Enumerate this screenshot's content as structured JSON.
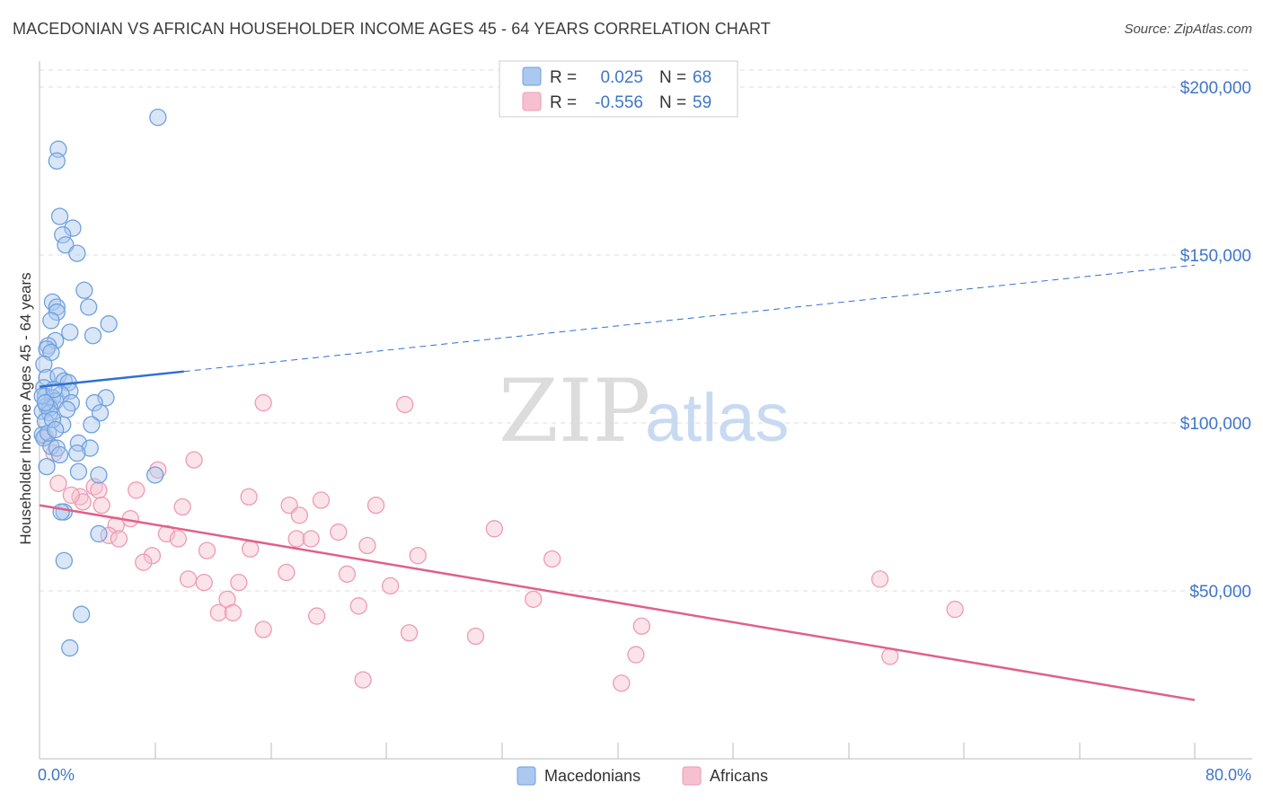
{
  "header": {
    "title": "MACEDONIAN VS AFRICAN HOUSEHOLDER INCOME AGES 45 - 64 YEARS CORRELATION CHART",
    "source": "Source: ZipAtlas.com"
  },
  "watermark": {
    "zip": "ZIP",
    "atlas": "atlas"
  },
  "colors": {
    "blue_fill": "#aac8f0",
    "blue_stroke": "#6fa0dd",
    "blue_line": "#2f6fd0",
    "pink_fill": "#f7c0d0",
    "pink_stroke": "#ee9ab3",
    "pink_line": "#e0608a",
    "axis_label": "#3f76c7",
    "grid": "#dddddd"
  },
  "legend": {
    "rows": [
      {
        "r_label": "R =",
        "r_value": "0.025",
        "n_label": "N =",
        "n_value": "68"
      },
      {
        "r_label": "R =",
        "r_value": "-0.556",
        "n_label": "N =",
        "n_value": "59"
      }
    ]
  },
  "bottom_legend": [
    "Macedonians",
    "Africans"
  ],
  "chart_data": {
    "type": "scatter",
    "title": "MACEDONIAN VS AFRICAN HOUSEHOLDER INCOME AGES 45 - 64 YEARS CORRELATION CHART",
    "xlabel": "",
    "ylabel": "Householder Income Ages 45 - 64 years",
    "xlim": [
      0,
      80
    ],
    "ylim": [
      0,
      205000
    ],
    "x_tick_labels": [
      "0.0%",
      "80.0%"
    ],
    "y_ticks": [
      50000,
      100000,
      150000,
      200000
    ],
    "y_tick_labels": [
      "$50,000",
      "$100,000",
      "$150,000",
      "$200,000"
    ],
    "series": [
      {
        "name": "Macedonians",
        "r": 0.025,
        "n": 68,
        "trend": {
          "x0": 0,
          "y0": 110800,
          "x1": 80,
          "y1": 147000,
          "solid_until": 10
        },
        "points": [
          [
            8.2,
            191000
          ],
          [
            1.3,
            181500
          ],
          [
            1.2,
            178000
          ],
          [
            1.4,
            161500
          ],
          [
            2.3,
            158000
          ],
          [
            1.6,
            156000
          ],
          [
            1.8,
            153000
          ],
          [
            2.6,
            150500
          ],
          [
            3.1,
            139500
          ],
          [
            0.9,
            136000
          ],
          [
            1.2,
            134500
          ],
          [
            1.2,
            133000
          ],
          [
            3.4,
            134500
          ],
          [
            0.8,
            130500
          ],
          [
            4.8,
            129500
          ],
          [
            2.1,
            127000
          ],
          [
            3.7,
            126000
          ],
          [
            1.1,
            124500
          ],
          [
            0.6,
            123000
          ],
          [
            0.5,
            122000
          ],
          [
            0.8,
            121000
          ],
          [
            0.3,
            117500
          ],
          [
            0.5,
            113500
          ],
          [
            1.3,
            114000
          ],
          [
            1.7,
            112500
          ],
          [
            2.0,
            112000
          ],
          [
            0.3,
            110500
          ],
          [
            2.1,
            109500
          ],
          [
            1.5,
            108500
          ],
          [
            0.4,
            108000
          ],
          [
            0.9,
            107500
          ],
          [
            4.6,
            107500
          ],
          [
            1.1,
            106500
          ],
          [
            2.2,
            106000
          ],
          [
            3.8,
            106000
          ],
          [
            0.5,
            105000
          ],
          [
            0.7,
            104500
          ],
          [
            0.2,
            103500
          ],
          [
            0.7,
            103000
          ],
          [
            4.2,
            103000
          ],
          [
            0.4,
            100500
          ],
          [
            1.6,
            99500
          ],
          [
            3.6,
            99500
          ],
          [
            0.2,
            96500
          ],
          [
            0.3,
            95500
          ],
          [
            2.7,
            94000
          ],
          [
            0.8,
            93000
          ],
          [
            1.2,
            92500
          ],
          [
            3.5,
            92500
          ],
          [
            2.6,
            91000
          ],
          [
            1.4,
            90500
          ],
          [
            0.5,
            87000
          ],
          [
            2.7,
            85500
          ],
          [
            4.1,
            84500
          ],
          [
            8.0,
            84500
          ],
          [
            1.7,
            73500
          ],
          [
            1.5,
            73500
          ],
          [
            4.1,
            67000
          ],
          [
            1.7,
            59000
          ],
          [
            2.9,
            43000
          ],
          [
            2.1,
            33000
          ],
          [
            0.2,
            108000
          ],
          [
            1.0,
            110000
          ],
          [
            0.6,
            97000
          ],
          [
            0.9,
            101000
          ],
          [
            1.9,
            104000
          ],
          [
            0.4,
            106000
          ],
          [
            1.1,
            98000
          ]
        ]
      },
      {
        "name": "Africans",
        "r": -0.556,
        "n": 59,
        "trend": {
          "x0": 0,
          "y0": 75500,
          "x1": 80,
          "y1": 17500
        },
        "points": [
          [
            15.5,
            106000
          ],
          [
            25.3,
            105500
          ],
          [
            10.7,
            89000
          ],
          [
            8.2,
            86000
          ],
          [
            1.3,
            82000
          ],
          [
            3.8,
            81000
          ],
          [
            4.1,
            80000
          ],
          [
            6.7,
            80000
          ],
          [
            2.8,
            78000
          ],
          [
            14.5,
            78000
          ],
          [
            19.5,
            77000
          ],
          [
            3.0,
            76500
          ],
          [
            17.3,
            75500
          ],
          [
            23.3,
            75500
          ],
          [
            4.3,
            75500
          ],
          [
            9.9,
            75000
          ],
          [
            18.0,
            72500
          ],
          [
            6.3,
            71500
          ],
          [
            5.3,
            69500
          ],
          [
            31.5,
            68500
          ],
          [
            20.7,
            67500
          ],
          [
            8.8,
            67000
          ],
          [
            4.8,
            66500
          ],
          [
            9.6,
            65500
          ],
          [
            17.8,
            65500
          ],
          [
            18.8,
            65500
          ],
          [
            5.5,
            65500
          ],
          [
            22.7,
            63500
          ],
          [
            14.6,
            62500
          ],
          [
            11.6,
            62000
          ],
          [
            7.8,
            60500
          ],
          [
            26.2,
            60500
          ],
          [
            35.5,
            59500
          ],
          [
            7.2,
            58500
          ],
          [
            17.1,
            55500
          ],
          [
            21.3,
            55000
          ],
          [
            10.3,
            53500
          ],
          [
            11.4,
            52500
          ],
          [
            13.8,
            52500
          ],
          [
            24.3,
            51500
          ],
          [
            58.2,
            53500
          ],
          [
            34.2,
            47500
          ],
          [
            13.0,
            47500
          ],
          [
            22.1,
            45500
          ],
          [
            63.4,
            44500
          ],
          [
            12.4,
            43500
          ],
          [
            13.4,
            43500
          ],
          [
            19.2,
            42500
          ],
          [
            41.7,
            39500
          ],
          [
            15.5,
            38500
          ],
          [
            25.6,
            37500
          ],
          [
            30.2,
            36500
          ],
          [
            41.3,
            31000
          ],
          [
            58.9,
            30500
          ],
          [
            22.4,
            23500
          ],
          [
            40.3,
            22500
          ],
          [
            1.0,
            91000
          ],
          [
            2.2,
            78500
          ],
          [
            0.4,
            96000
          ]
        ]
      }
    ]
  }
}
